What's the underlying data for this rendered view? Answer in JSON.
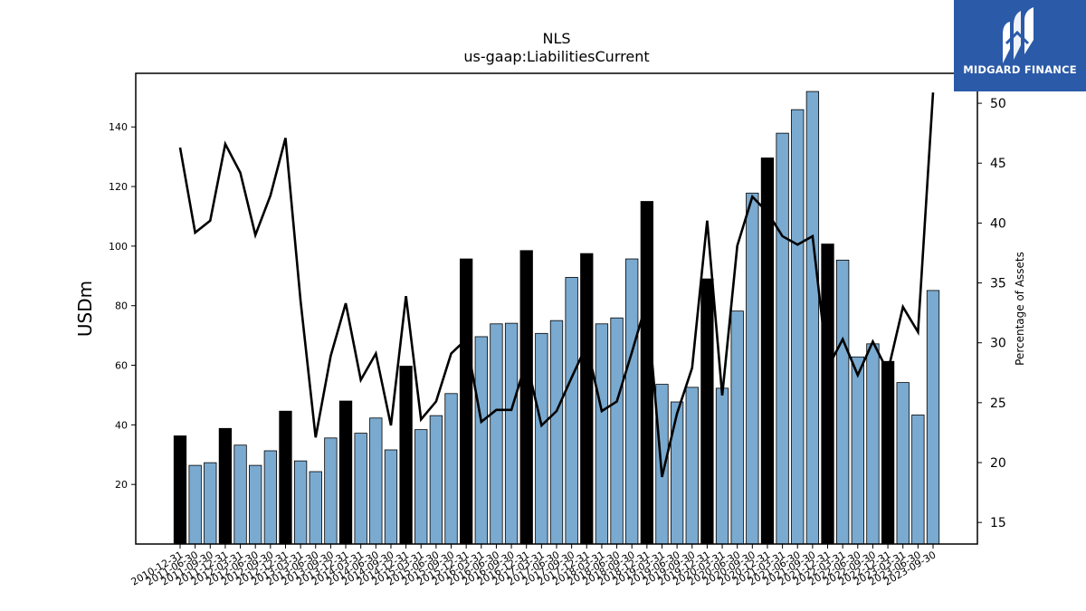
{
  "chart_data": {
    "type": "bar+line",
    "title": "NLS",
    "subtitle": "us-gaap:LiabilitiesCurrent",
    "ylabel": "USDm",
    "y2label": "Percentage of Assets",
    "ylim": [
      0,
      158
    ],
    "y2lim": [
      13.2,
      52.5
    ],
    "yticks": [
      20,
      40,
      60,
      80,
      100,
      120,
      140
    ],
    "y2ticks": [
      15,
      20,
      25,
      30,
      35,
      40,
      45,
      50
    ],
    "categories": [
      "2010-12-31",
      "2011-06-30",
      "2011-09-30",
      "2011-12-31",
      "2012-03-31",
      "2012-06-30",
      "2012-09-30",
      "2012-12-31",
      "2013-03-31",
      "2013-06-30",
      "2013-09-30",
      "2013-12-31",
      "2014-03-31",
      "2014-06-30",
      "2014-09-30",
      "2014-12-31",
      "2015-03-31",
      "2015-06-30",
      "2015-09-30",
      "2015-12-31",
      "2016-03-31",
      "2016-06-30",
      "2016-09-30",
      "2016-12-31",
      "2017-03-31",
      "2017-06-30",
      "2017-09-30",
      "2017-12-31",
      "2018-03-31",
      "2018-06-30",
      "2018-09-30",
      "2018-12-31",
      "2019-03-31",
      "2019-06-30",
      "2019-09-30",
      "2019-12-31",
      "2020-03-31",
      "2020-06-30",
      "2020-09-30",
      "2020-12-31",
      "2021-03-31",
      "2021-06-30",
      "2021-09-30",
      "2021-12-31",
      "2022-03-31",
      "2022-06-30",
      "2022-09-30",
      "2022-12-31",
      "2023-03-31",
      "2023-06-30",
      "2023-09-30"
    ],
    "series": [
      {
        "type": "bar",
        "values": [
          36.3,
          26.4,
          27.3,
          38.8,
          33.2,
          26.4,
          31.3,
          44.6,
          27.9,
          24.3,
          35.6,
          48.0,
          37.2,
          42.3,
          31.6,
          59.7,
          38.4,
          43.1,
          50.5,
          95.7,
          69.6,
          73.9,
          74.1,
          98.5,
          70.7,
          75.0,
          89.5,
          97.5,
          73.9,
          75.9,
          95.7,
          115.0,
          53.6,
          47.7,
          52.6,
          89.0,
          52.3,
          78.2,
          117.8,
          129.6,
          137.9,
          145.8,
          151.9,
          100.7,
          95.3,
          62.8,
          67.2,
          61.3,
          54.2,
          43.3,
          85.1
        ],
        "highlight": [
          0,
          3,
          7,
          11,
          15,
          19,
          23,
          27,
          31,
          35,
          39,
          43,
          47
        ],
        "colors": {
          "default": "#7aaad0",
          "highlight": "#000000",
          "edge": "#000000"
        }
      },
      {
        "type": "line",
        "axis": "right",
        "values": [
          46.3,
          39.2,
          40.2,
          46.6,
          44.2,
          39.0,
          42.3,
          47.1,
          33.5,
          22.1,
          28.9,
          33.3,
          26.9,
          29.1,
          23.1,
          33.9,
          23.6,
          25.1,
          29.1,
          30.3,
          23.4,
          24.4,
          24.4,
          28.5,
          23.1,
          24.3,
          27.1,
          29.8,
          24.3,
          25.1,
          29.2,
          33.5,
          18.8,
          24.1,
          27.9,
          40.2,
          25.6,
          38.1,
          42.2,
          40.9,
          38.9,
          38.2,
          38.9,
          27.9,
          30.3,
          27.3,
          30.1,
          27.6,
          33.0,
          30.9,
          50.9
        ],
        "color": "#000000"
      }
    ]
  },
  "logo": {
    "text": "MIDGARD FINANCE"
  }
}
